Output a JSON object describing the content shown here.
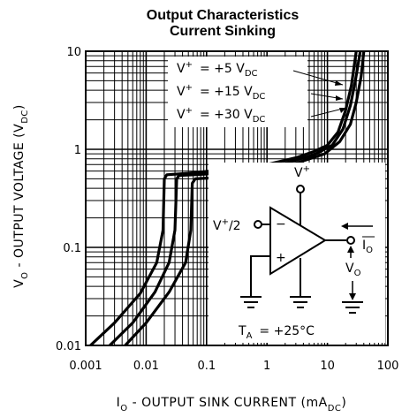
{
  "chart_data": {
    "type": "line",
    "title": "Output Characteristics",
    "subtitle": "Current Sinking",
    "xlabel": "I",
    "xlabel_sub": "O",
    "xlabel_rest": " - OUTPUT SINK CURRENT (mA",
    "xlabel_unit_sub": "DC",
    "xlabel_end": ")",
    "ylabel": "V",
    "ylabel_sub": "O",
    "ylabel_rest": " - OUTPUT VOLTAGE (V",
    "ylabel_unit_sub": "DC",
    "ylabel_end": ")",
    "x_scale": "log",
    "y_scale": "log",
    "xlim": [
      0.001,
      100
    ],
    "ylim": [
      0.01,
      10
    ],
    "grid": true,
    "x_ticks": [
      {
        "value": 0.001,
        "label": "0.001"
      },
      {
        "value": 0.01,
        "label": "0.01"
      },
      {
        "value": 0.1,
        "label": "0.1"
      },
      {
        "value": 1,
        "label": "1"
      },
      {
        "value": 10,
        "label": "10"
      },
      {
        "value": 100,
        "label": "100"
      }
    ],
    "y_ticks": [
      {
        "value": 0.01,
        "label": "0.01"
      },
      {
        "value": 0.1,
        "label": "0.1"
      },
      {
        "value": 1,
        "label": "1"
      },
      {
        "value": 10,
        "label": "10"
      }
    ],
    "series": [
      {
        "name": "V+ = +5 VDC",
        "color": "#000000",
        "points": [
          [
            0.0012,
            0.01
          ],
          [
            0.003,
            0.017
          ],
          [
            0.008,
            0.034
          ],
          [
            0.015,
            0.07
          ],
          [
            0.019,
            0.15
          ],
          [
            0.02,
            0.5
          ],
          [
            0.022,
            0.55
          ],
          [
            0.05,
            0.57
          ],
          [
            0.2,
            0.62
          ],
          [
            1,
            0.7
          ],
          [
            3,
            0.82
          ],
          [
            6,
            0.95
          ],
          [
            10,
            1.1
          ],
          [
            15,
            1.5
          ],
          [
            20,
            2.5
          ],
          [
            25,
            4.5
          ],
          [
            30,
            10
          ]
        ]
      },
      {
        "name": "V+ = +15 VDC",
        "color": "#000000",
        "points": [
          [
            0.0025,
            0.01
          ],
          [
            0.006,
            0.017
          ],
          [
            0.014,
            0.035
          ],
          [
            0.024,
            0.07
          ],
          [
            0.03,
            0.15
          ],
          [
            0.032,
            0.5
          ],
          [
            0.035,
            0.54
          ],
          [
            0.1,
            0.56
          ],
          [
            0.4,
            0.63
          ],
          [
            2,
            0.72
          ],
          [
            6,
            0.88
          ],
          [
            12,
            1.1
          ],
          [
            18,
            1.6
          ],
          [
            24,
            2.8
          ],
          [
            29,
            5
          ],
          [
            35,
            10
          ]
        ]
      },
      {
        "name": "V+ = +30 VDC",
        "color": "#000000",
        "points": [
          [
            0.0045,
            0.01
          ],
          [
            0.01,
            0.017
          ],
          [
            0.024,
            0.035
          ],
          [
            0.045,
            0.07
          ],
          [
            0.055,
            0.15
          ],
          [
            0.058,
            0.45
          ],
          [
            0.065,
            0.5
          ],
          [
            0.2,
            0.52
          ],
          [
            0.8,
            0.6
          ],
          [
            3,
            0.72
          ],
          [
            9,
            0.9
          ],
          [
            16,
            1.2
          ],
          [
            24,
            1.8
          ],
          [
            30,
            3
          ],
          [
            36,
            5.5
          ],
          [
            40,
            10
          ]
        ]
      }
    ],
    "legend": {
      "entries": [
        {
          "sup": "+",
          "text": "= +5 V",
          "sub": "DC"
        },
        {
          "sup": "+",
          "text": "= +15 V",
          "sub": "DC"
        },
        {
          "sup": "+",
          "text": "= +30 V",
          "sub": "DC"
        }
      ]
    },
    "circuit": {
      "supply_label": "V",
      "supply_sup": "+",
      "input_label": "V",
      "input_sup": "+",
      "input_rest": "/2",
      "minus": "−",
      "plus": "+",
      "output_current": "I",
      "output_current_sub": "O",
      "output_voltage": "V",
      "output_voltage_sub": "O",
      "temp_label": "T",
      "temp_sub": "A",
      "temp_value": "= +25°C"
    }
  }
}
